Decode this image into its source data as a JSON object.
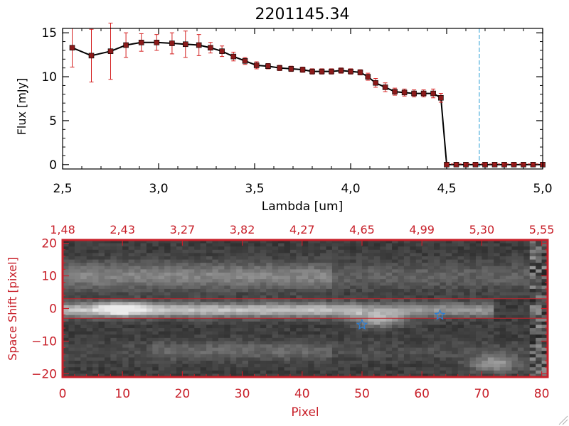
{
  "chart_data": [
    {
      "type": "line",
      "title": "2201145.34",
      "xlabel": "Lambda [um]",
      "ylabel": "Flux [mJy]",
      "xlim": [
        2.5,
        5.0
      ],
      "ylim": [
        -0.5,
        15.5
      ],
      "xticks": [
        2.5,
        3.0,
        3.5,
        4.0,
        4.5,
        5.0
      ],
      "xtick_labels": [
        "2,5",
        "3,0",
        "3,5",
        "4,0",
        "4,5",
        "5,0"
      ],
      "yticks": [
        0,
        5,
        10,
        15
      ],
      "ytick_labels": [
        "0",
        "5",
        "10",
        "15"
      ],
      "vertical_marker": 4.67,
      "vertical_marker_color": "#2a9fd6",
      "line_color": "#000000",
      "marker_color": "#8b1a1a",
      "errorbar_color": "#d42020",
      "series": [
        {
          "name": "flux",
          "x": [
            2.55,
            2.65,
            2.75,
            2.83,
            2.91,
            2.99,
            3.07,
            3.14,
            3.21,
            3.27,
            3.33,
            3.39,
            3.45,
            3.51,
            3.57,
            3.63,
            3.69,
            3.75,
            3.8,
            3.85,
            3.9,
            3.95,
            4.0,
            4.05,
            4.09,
            4.13,
            4.18,
            4.23,
            4.28,
            4.33,
            4.38,
            4.43,
            4.47,
            4.5,
            4.55,
            4.6,
            4.65,
            4.7,
            4.75,
            4.8,
            4.85,
            4.9,
            4.95,
            5.0
          ],
          "y": [
            13.3,
            12.4,
            12.9,
            13.6,
            13.9,
            13.9,
            13.8,
            13.7,
            13.6,
            13.3,
            12.9,
            12.3,
            11.8,
            11.3,
            11.2,
            11.0,
            10.9,
            10.8,
            10.6,
            10.6,
            10.6,
            10.7,
            10.6,
            10.5,
            10.0,
            9.3,
            8.8,
            8.3,
            8.2,
            8.1,
            8.1,
            8.1,
            7.6,
            0,
            0,
            0,
            0,
            0,
            0,
            0,
            0,
            0,
            0,
            0
          ],
          "err": [
            2.2,
            3.0,
            3.2,
            1.4,
            1.0,
            0.9,
            1.2,
            1.5,
            1.2,
            0.6,
            0.6,
            0.5,
            0.4,
            0.4,
            0.3,
            0.3,
            0.3,
            0.3,
            0.3,
            0.3,
            0.3,
            0.3,
            0.3,
            0.3,
            0.4,
            0.5,
            0.5,
            0.4,
            0.4,
            0.4,
            0.4,
            0.5,
            0.5,
            0,
            0,
            0,
            0,
            0,
            0,
            0,
            0,
            0,
            0,
            0
          ]
        }
      ]
    },
    {
      "type": "heatmap",
      "xlabel": "Pixel",
      "ylabel": "Space Shift [pixel]",
      "xlim": [
        0,
        81
      ],
      "ylim": [
        -21,
        21
      ],
      "xticks": [
        0,
        10,
        20,
        30,
        40,
        50,
        60,
        70,
        80
      ],
      "xtick_labels": [
        "0",
        "10",
        "20",
        "30",
        "40",
        "50",
        "60",
        "70",
        "80"
      ],
      "yticks": [
        -20,
        -10,
        0,
        10,
        20
      ],
      "ytick_labels": [
        "−20",
        "−10",
        "0",
        "10",
        "20"
      ],
      "top_ticks": [
        0,
        10,
        20,
        30,
        40,
        50,
        60,
        70,
        80
      ],
      "top_labels": [
        "1,48",
        "2,43",
        "3,27",
        "3,82",
        "4,27",
        "4,65",
        "4,99",
        "5,30",
        "5,55"
      ],
      "aperture_lines": [
        3,
        -3
      ],
      "axis_color": "#c8202a",
      "marker_color": "#2a7fd6",
      "star_markers": [
        {
          "x": 50,
          "y": -5
        },
        {
          "x": 63,
          "y": -2
        }
      ]
    }
  ]
}
